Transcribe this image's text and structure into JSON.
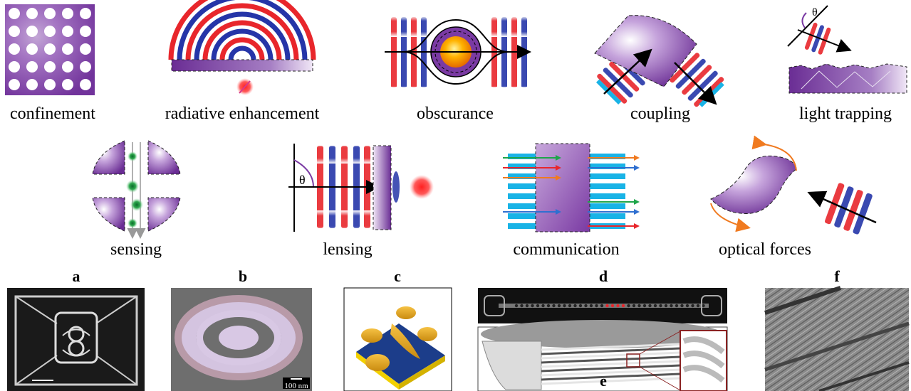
{
  "row1": {
    "labels": [
      "confinement",
      "radiative enhancement",
      "obscurance",
      "coupling",
      "light trapping"
    ],
    "theta": "θ"
  },
  "row2": {
    "labels": [
      "sensing",
      "lensing",
      "communication",
      "optical forces"
    ],
    "theta": "θ"
  },
  "panels": {
    "labels": [
      "a",
      "b",
      "c",
      "d",
      "e",
      "f"
    ],
    "b_scale": "100 nm"
  },
  "colors": {
    "purple": "#7a3aa3",
    "red": "#e8262b",
    "blue": "#2535a8",
    "cyan": "#19b3e6"
  }
}
